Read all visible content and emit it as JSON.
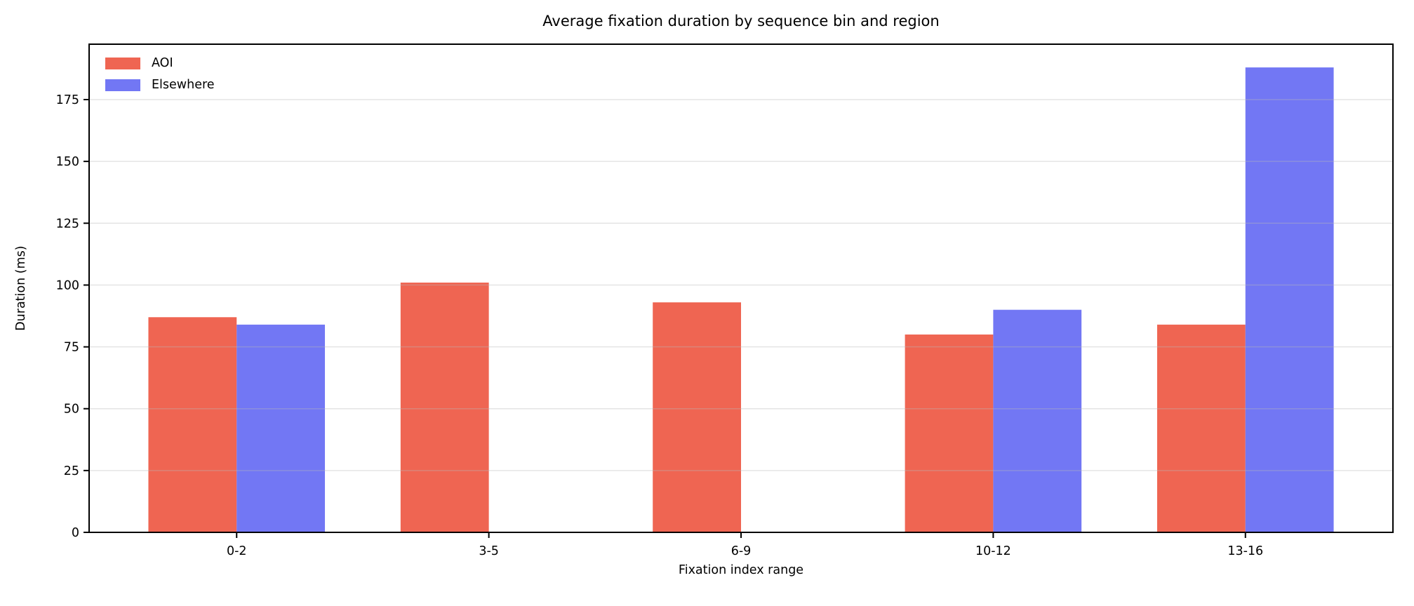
{
  "chart_data": {
    "type": "bar",
    "title": "Average fixation duration by sequence bin and region",
    "xlabel": "Fixation index range",
    "ylabel": "Duration (ms)",
    "categories": [
      "0-2",
      "3-5",
      "6-9",
      "10-12",
      "13-16"
    ],
    "series": [
      {
        "name": "AOI",
        "color": "#ef6552",
        "values": [
          87,
          101,
          93,
          80,
          84
        ]
      },
      {
        "name": "Elsewhere",
        "color": "#7277f4",
        "values": [
          84,
          0,
          0,
          90,
          188
        ]
      }
    ],
    "yticks": [
      0,
      25,
      50,
      75,
      100,
      125,
      150,
      175
    ],
    "ylim": [
      0,
      197.4
    ],
    "xlim": [
      -0.585,
      4.585
    ],
    "bar_width": 0.35,
    "grid": true,
    "gridline_color": "rgba(184,184,184,0.38)",
    "axis_color": "#000000",
    "background_color": "#ffffff",
    "legend_position": "upper left"
  }
}
